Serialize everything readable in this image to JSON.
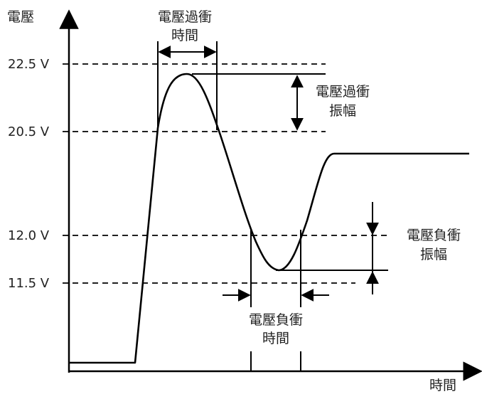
{
  "axes": {
    "y_label": "電壓",
    "x_label": "時間"
  },
  "levels": [
    "22.5 V",
    "20.5 V",
    "12.0 V",
    "11.5 V"
  ],
  "annotations": {
    "overshoot_time": [
      "電壓過衝",
      "時間"
    ],
    "overshoot_amplitude": [
      "電壓過衝",
      "振幅"
    ],
    "undershoot_amplitude": [
      "電壓負衝",
      "振幅"
    ],
    "undershoot_time": [
      "電壓負衝",
      "時間"
    ]
  },
  "colors": {
    "line": "#000000",
    "text": "#222222",
    "background": "#ffffff"
  }
}
